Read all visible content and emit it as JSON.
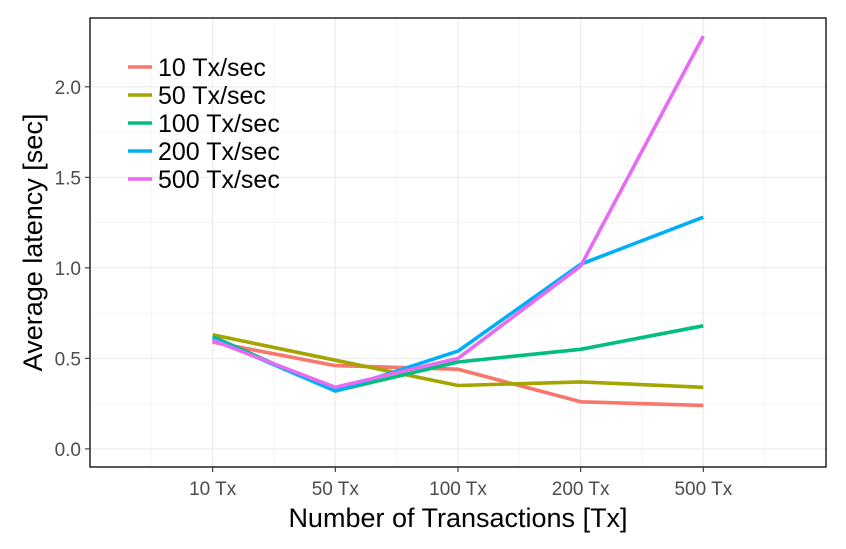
{
  "chart_data": {
    "type": "line",
    "title": "",
    "xlabel": "Number of Transactions [Tx]",
    "ylabel": "Average latency [sec]",
    "categories": [
      "10 Tx",
      "50 Tx",
      "100 Tx",
      "200 Tx",
      "500 Tx"
    ],
    "y_ticks": [
      "0.0",
      "0.5",
      "1.0",
      "1.5",
      "2.0"
    ],
    "ylim": [
      -0.1,
      2.38
    ],
    "grid": true,
    "legend_position": "top-left",
    "series": [
      {
        "name": "10 Tx/sec",
        "color": "#F8766D",
        "values": [
          0.59,
          0.46,
          0.44,
          0.26,
          0.24
        ]
      },
      {
        "name": "50 Tx/sec",
        "color": "#A3A500",
        "values": [
          0.63,
          0.49,
          0.35,
          0.37,
          0.34
        ]
      },
      {
        "name": "100 Tx/sec",
        "color": "#00BF7D",
        "values": [
          0.62,
          0.32,
          0.48,
          0.55,
          0.68
        ]
      },
      {
        "name": "200 Tx/sec",
        "color": "#00B0F6",
        "values": [
          0.61,
          0.32,
          0.54,
          1.02,
          1.28
        ]
      },
      {
        "name": "500 Tx/sec",
        "color": "#E76BF3",
        "values": [
          0.6,
          0.34,
          0.5,
          1.01,
          2.28
        ]
      }
    ]
  }
}
